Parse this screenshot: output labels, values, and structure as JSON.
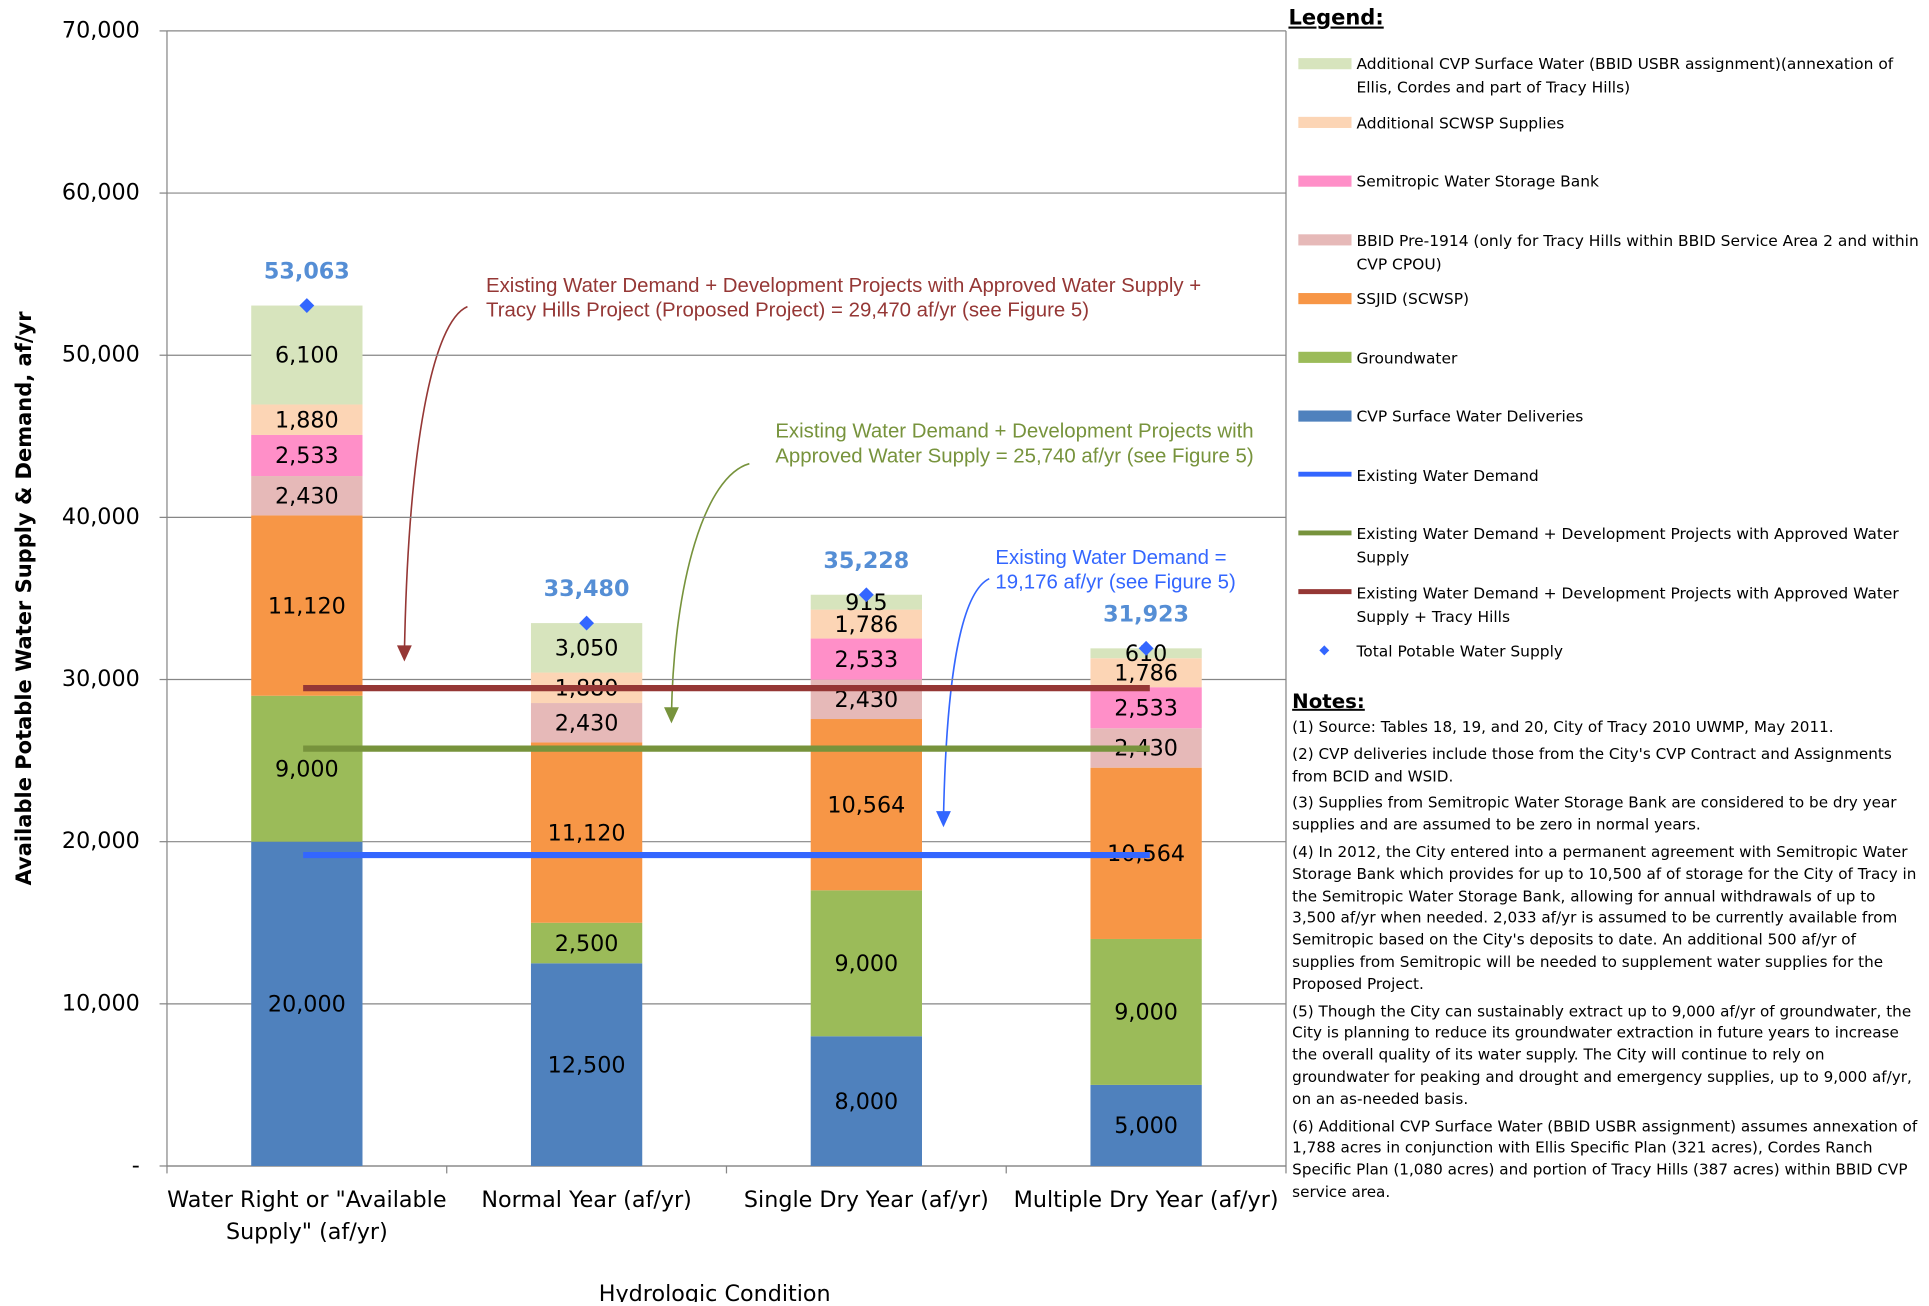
{
  "chart_data": {
    "type": "stacked_bar",
    "x_label": "Hydrologic Condition",
    "y_label": "Available Potable Water Supply & Demand, af/yr",
    "categories": [
      "Water Right or \"Available Supply\" (af/yr)",
      "Normal Year (af/yr)",
      "Single Dry Year (af/yr)",
      "Multiple Dry Year (af/yr)"
    ],
    "ylim": [
      0,
      70000
    ],
    "yticks": [
      {
        "value": 0,
        "label": "-"
      },
      {
        "value": 10000,
        "label": "10,000"
      },
      {
        "value": 20000,
        "label": "20,000"
      },
      {
        "value": 30000,
        "label": "30,000"
      },
      {
        "value": 40000,
        "label": "40,000"
      },
      {
        "value": 50000,
        "label": "50,000"
      },
      {
        "value": 60000,
        "label": "60,000"
      },
      {
        "value": 70000,
        "label": "70,000"
      }
    ],
    "grid": true,
    "series": [
      {
        "name": "CVP Surface Water Deliveries",
        "color": "#4f81bd",
        "values": [
          20000,
          12500,
          8000,
          5000
        ],
        "value_labels": [
          "20,000",
          "12,500",
          "8,000",
          "5,000"
        ]
      },
      {
        "name": "Groundwater",
        "color": "#9bbb59",
        "values": [
          9000,
          2500,
          9000,
          9000
        ],
        "value_labels": [
          "9,000",
          "2,500",
          "9,000",
          "9,000"
        ]
      },
      {
        "name": "SSJID (SCWSP)",
        "color": "#f79646",
        "values": [
          11120,
          11120,
          10564,
          10564
        ],
        "value_labels": [
          "11,120",
          "11,120",
          "10,564",
          "10,564"
        ]
      },
      {
        "name": "BBID Pre-1914 (only for Tracy Hills within BBID Service Area 2 and within CVP CPOU)",
        "color": "#e6b9b8",
        "values": [
          2430,
          2430,
          2430,
          2430
        ],
        "value_labels": [
          "2,430",
          "2,430",
          "2,430",
          "2,430"
        ]
      },
      {
        "name": "Semitropic Water Storage Bank",
        "color": "#ff8fc8",
        "values": [
          2533,
          null,
          2533,
          2533
        ],
        "value_labels": [
          "2,533",
          null,
          "2,533",
          "2,533"
        ]
      },
      {
        "name": "Additional SCWSP Supplies",
        "color": "#fcd5b5",
        "values": [
          1880,
          1880,
          1786,
          1786
        ],
        "value_labels": [
          "1,880",
          "1,880",
          "1,786",
          "1,786"
        ]
      },
      {
        "name": "Additional CVP Surface Water (BBID USBR assignment)(annexation of Ellis, Cordes and part of Tracy Hills)",
        "color": "#d7e4bd",
        "values": [
          6100,
          3050,
          915,
          610
        ],
        "value_labels": [
          "6,100",
          "3,050",
          "915",
          "610"
        ]
      }
    ],
    "total": {
      "name": "Total Potable Water Supply",
      "color": "#3366ff",
      "label_color": "#558ed5",
      "values": [
        53063,
        33480,
        35228,
        31923
      ],
      "value_labels": [
        "53,063",
        "33,480",
        "35,228",
        "31,923"
      ]
    },
    "reference_lines": [
      {
        "name": "Existing Water Demand",
        "color": "#3366ff",
        "value": 19176,
        "annotation": "Existing Water Demand = 19,176 af/yr (see Figure 5)"
      },
      {
        "name": "Existing Water Demand + Development Projects with Approved Water Supply",
        "color": "#77933c",
        "value": 25740,
        "annotation": "Existing Water Demand + Development Projects with Approved Water Supply = 25,740 af/yr (see Figure 5)"
      },
      {
        "name": "Existing Water Demand + Development Projects with Approved Water Supply + Tracy Hills",
        "color": "#953735",
        "value": 29470,
        "annotation": "Existing Water Demand  + Development Projects with Approved Water Supply + Tracy Hills Project (Proposed Project) = 29,470 af/yr (see Figure 5)"
      }
    ],
    "legend_title": "Legend:",
    "notes_title": "Notes:",
    "notes": [
      "(1) Source:  Tables 18, 19, and 20, City of Tracy 2010 UWMP, May 2011.",
      "(2) CVP deliveries include those from the City's CVP Contract and Assignments from BCID and WSID.",
      "(3) Supplies from Semitropic Water Storage Bank are considered to be dry year supplies and are assumed to be zero in normal years.",
      "(4) In 2012, the City entered into a permanent agreement with Semitropic Water Storage Bank which provides for up to 10,500 af of storage for the City of Tracy in the Semitropic Water Storage Bank, allowing for annual withdrawals of up to 3,500 af/yr when needed. 2,033 af/yr is assumed to be currently available from Semitropic based on the City's deposits to date. An additional 500 af/yr of supplies from Semitropic will be needed to supplement water supplies for the Proposed Project.",
      "(5) Though the City can sustainably extract up to 9,000 af/yr of groundwater, the City is planning to reduce its groundwater extraction in future years to increase the overall quality of its water supply.  The City will continue to rely on groundwater for peaking and drought and emergency supplies, up to 9,000 af/yr, on an as-needed basis.",
      "(6) Additional CVP Surface Water (BBID USBR assignment) assumes annexation of 1,788 acres in conjunction with Ellis Specific Plan (321 acres), Cordes Ranch Specific Plan (1,080 acres)  and portion of Tracy Hills (387 acres) within BBID CVP service area."
    ]
  }
}
